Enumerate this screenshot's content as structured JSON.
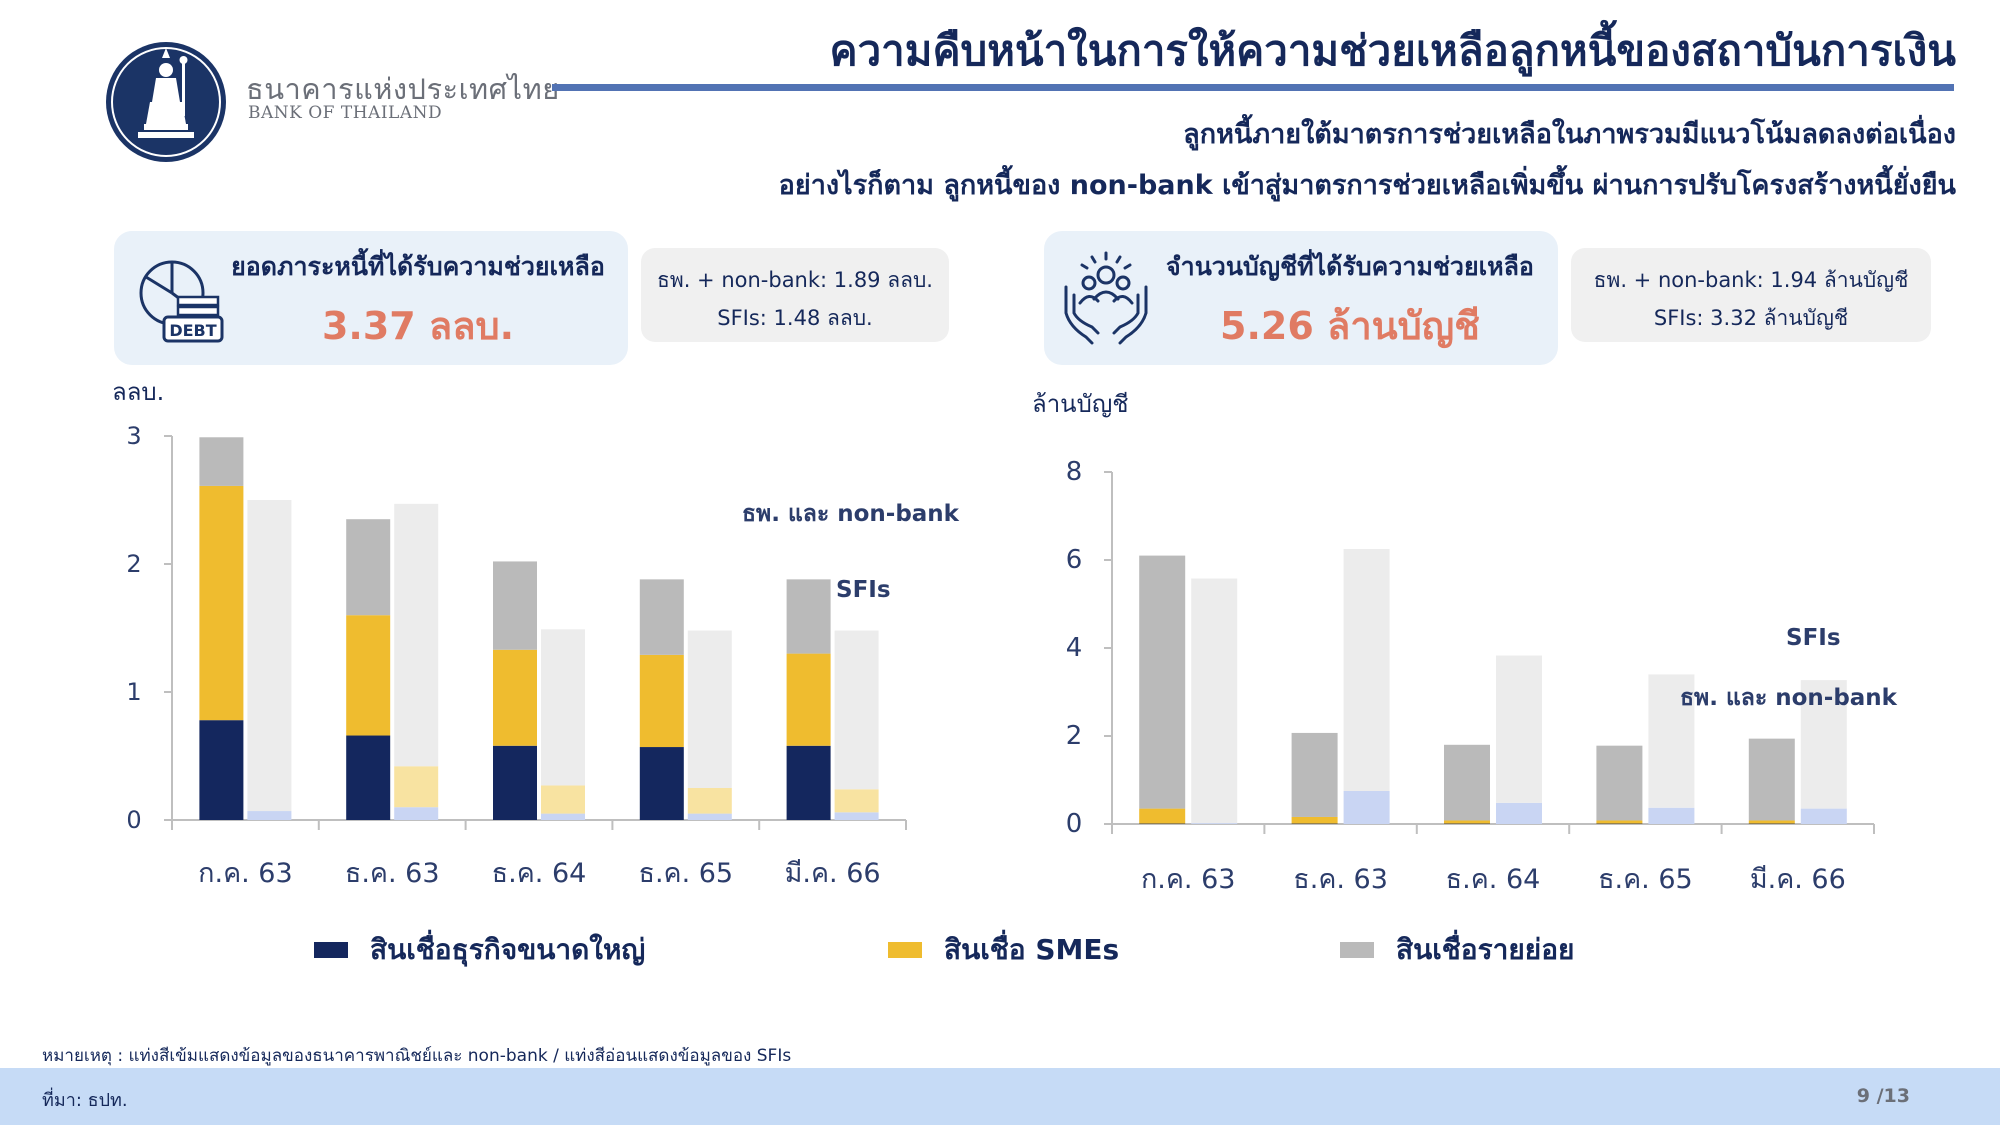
{
  "header": {
    "title": "ความคืบหน้าในการให้ความช่วยเหลือลูกหนี้ของสถาบันการเงิน",
    "subtitle_1": "ลูกหนี้ภายใต้มาตรการช่วยเหลือในภาพรวมมีแนวโน้มลดลงต่อเนื่อง",
    "subtitle_2": "อย่างไรก็ตาม ลูกหนี้ของ non-bank เข้าสู่มาตรการช่วยเหลือเพิ่มขึ้น ผ่านการปรับโครงสร้างหนี้ยั่งยืน"
  },
  "brand": {
    "name_th": "ธนาคารแห่งประเทศไทย",
    "name_en": "BANK OF THAILAND",
    "logo_icon": "bank-of-thailand-seal",
    "color": "#1b3466"
  },
  "kpi_left": {
    "icon": "debt-pie-chart-icon",
    "icon_text": "DEBT",
    "label": "ยอดภาระหนี้ที่ได้รับความช่วยเหลือ",
    "value": "3.37 ลลบ.",
    "note_1": "ธพ. + non-bank: 1.89 ลลบ.",
    "note_2": "SFIs: 1.48 ลลบ."
  },
  "kpi_right": {
    "icon": "helping-hands-people-icon",
    "label": "จำนวนบัญชีที่ได้รับความช่วยเหลือ",
    "value": "5.26 ล้านบัญชี",
    "note_1": "ธพ. + non-bank: 1.94 ล้านบัญชี",
    "note_2": "SFIs: 3.32 ล้านบัญชี"
  },
  "colors": {
    "large_business": "#14275e",
    "smes": "#efbc2f",
    "retail": "#bababa",
    "large_business_sfi": "#c9d5f3",
    "smes_sfi": "#f8e3a1",
    "retail_sfi": "#ececec",
    "axis": "#bfbfbf",
    "kpi_value": "#e07b63"
  },
  "chart_data": [
    {
      "type": "bar",
      "stacked": true,
      "unit_label": "ลลบ.",
      "categories": [
        "ก.ค. 63",
        "ธ.ค. 63",
        "ธ.ค. 64",
        "ธ.ค. 65",
        "มี.ค. 66"
      ],
      "ylim": [
        0,
        3
      ],
      "yticks": [
        0,
        1,
        2,
        3
      ],
      "groups": [
        {
          "name": "ธพ. และ non-bank",
          "series": [
            {
              "name": "สินเชื่อธุรกิจขนาดใหญ่",
              "values": [
                0.78,
                0.66,
                0.58,
                0.57,
                0.58
              ]
            },
            {
              "name": "สินเชื่อ SMEs",
              "values": [
                1.83,
                0.94,
                0.75,
                0.72,
                0.72
              ]
            },
            {
              "name": "สินเชื่อรายย่อย",
              "values": [
                0.38,
                0.75,
                0.69,
                0.59,
                0.58
              ]
            }
          ]
        },
        {
          "name": "SFIs",
          "series": [
            {
              "name": "สินเชื่อธุรกิจขนาดใหญ่",
              "values": [
                0.07,
                0.1,
                0.05,
                0.05,
                0.06
              ]
            },
            {
              "name": "สินเชื่อ SMEs",
              "values": [
                0.0,
                0.32,
                0.22,
                0.2,
                0.18
              ]
            },
            {
              "name": "สินเชื่อรายย่อย",
              "values": [
                2.43,
                2.05,
                1.22,
                1.23,
                1.24
              ]
            }
          ]
        }
      ],
      "annotations": [
        "ธพ. และ non-bank",
        "SFIs"
      ]
    },
    {
      "type": "bar",
      "stacked": true,
      "unit_label": "ล้านบัญชี",
      "categories": [
        "ก.ค. 63",
        "ธ.ค. 63",
        "ธ.ค. 64",
        "ธ.ค. 65",
        "มี.ค. 66"
      ],
      "ylim": [
        0,
        8
      ],
      "yticks": [
        0,
        2,
        4,
        6,
        8
      ],
      "groups": [
        {
          "name": "ธพ. และ non-bank",
          "series": [
            {
              "name": "สินเชื่อธุรกิจขนาดใหญ่",
              "values": [
                0.01,
                0.01,
                0.01,
                0.01,
                0.01
              ]
            },
            {
              "name": "สินเชื่อ SMEs",
              "values": [
                0.34,
                0.15,
                0.07,
                0.07,
                0.07
              ]
            },
            {
              "name": "สินเชื่อรายย่อย",
              "values": [
                5.75,
                1.91,
                1.72,
                1.7,
                1.86
              ]
            }
          ]
        },
        {
          "name": "SFIs",
          "series": [
            {
              "name": "สินเชื่อธุรกิจขนาดใหญ่",
              "values": [
                0.02,
                0.75,
                0.48,
                0.37,
                0.35
              ]
            },
            {
              "name": "สินเชื่อ SMEs",
              "values": [
                0.0,
                0.0,
                0.0,
                0.0,
                0.0
              ]
            },
            {
              "name": "สินเชื่อรายย่อย",
              "values": [
                5.56,
                5.5,
                3.35,
                3.03,
                2.92
              ]
            }
          ]
        }
      ],
      "annotations": [
        "SFIs",
        "ธพ. และ non-bank"
      ]
    }
  ],
  "legend": [
    {
      "label": "สินเชื่อธุรกิจขนาดใหญ่",
      "color": "#14275e"
    },
    {
      "label": "สินเชื่อ SMEs",
      "color": "#efbc2f"
    },
    {
      "label": "สินเชื่อรายย่อย",
      "color": "#bababa"
    }
  ],
  "footer": {
    "note": "หมายเหตุ : แท่งสีเข้มแสดงข้อมูลของธนาคารพาณิชย์และ non-bank / แท่งสีอ่อนแสดงข้อมูลของ SFIs",
    "source": "ที่มา: ธปท.",
    "page": "9 /13"
  }
}
